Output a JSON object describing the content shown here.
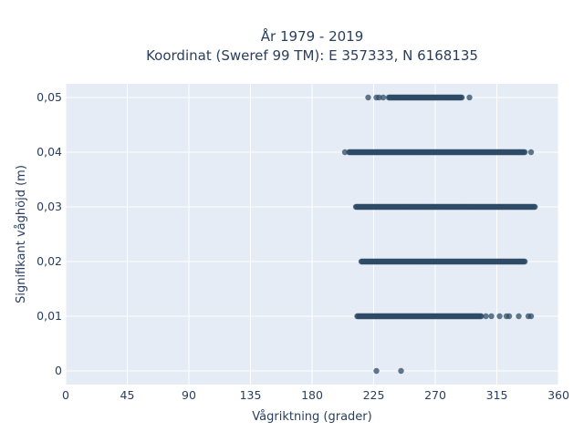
{
  "chart_data": {
    "type": "scatter",
    "title_lines": [
      "År 1979 - 2019",
      "Koordinat (Sweref 99 TM): E 357333, N 6168135"
    ],
    "xlabel": "Vågriktning (grader)",
    "ylabel": "Signifikant våghöjd (m)",
    "xlim": [
      0,
      360
    ],
    "ylim": [
      -0.0025,
      0.0525
    ],
    "x_ticks": [
      "0",
      "45",
      "90",
      "135",
      "180",
      "225",
      "270",
      "315",
      "360"
    ],
    "y_ticks": [
      "0",
      "0,01",
      "0,02",
      "0,03",
      "0,04",
      "0,05"
    ],
    "grid": true,
    "background": "#e5ecf6",
    "marker_color": "#2f4b66",
    "points": [
      {
        "y": 0.0,
        "x": [
          227,
          245
        ]
      },
      {
        "y": 0.01,
        "x_range": [
          209,
          340
        ],
        "dense_range": [
          213,
          304
        ],
        "outliers": [
          307,
          311,
          317,
          322,
          324,
          331,
          338,
          340
        ]
      },
      {
        "y": 0.02,
        "x_range": [
          215,
          336
        ],
        "dense_range": [
          216,
          336
        ],
        "outliers": []
      },
      {
        "y": 0.03,
        "x_range": [
          211,
          343
        ],
        "dense_range": [
          212,
          343
        ],
        "outliers": []
      },
      {
        "y": 0.04,
        "x_range": [
          204,
          340
        ],
        "dense_range": [
          207,
          336
        ],
        "outliers": [
          204,
          340
        ]
      },
      {
        "y": 0.05,
        "x_range": [
          221,
          295
        ],
        "dense_range": [
          236,
          290
        ],
        "outliers": [
          221,
          227,
          229,
          232,
          295
        ]
      }
    ]
  }
}
